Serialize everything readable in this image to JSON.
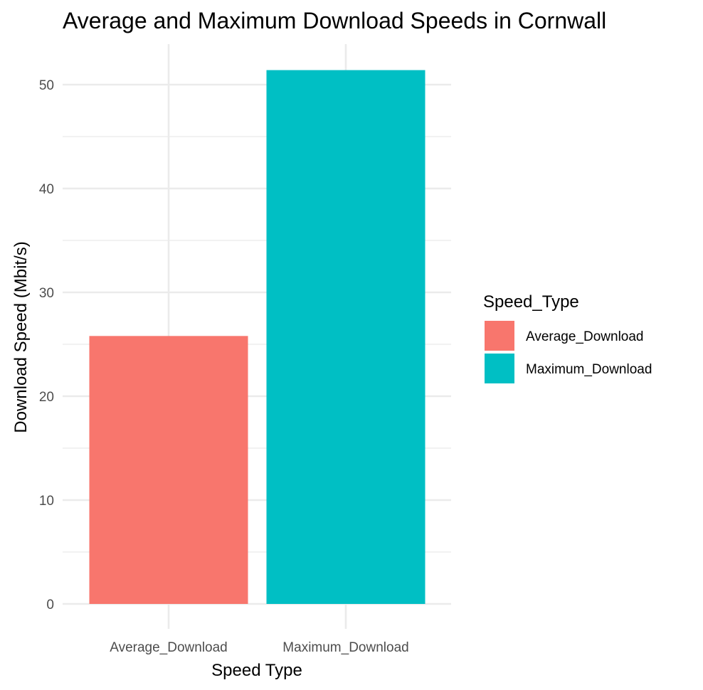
{
  "chart_data": {
    "type": "bar",
    "title": "Average and Maximum Download Speeds in Cornwall",
    "xlabel": "Speed Type",
    "ylabel": "Download Speed (Mbit/s)",
    "categories": [
      "Average_Download",
      "Maximum_Download"
    ],
    "values": [
      25.8,
      51.4
    ],
    "colors": [
      "#F8766D",
      "#00BFC4"
    ],
    "ylim": [
      0,
      52
    ],
    "yticks": [
      0,
      10,
      20,
      30,
      40,
      50
    ],
    "ytick_labels": [
      "0",
      "10",
      "20",
      "30",
      "40",
      "50"
    ],
    "grid": true,
    "legend": {
      "title": "Speed_Type",
      "position": "right",
      "entries": [
        {
          "label": "Average_Download",
          "color": "#F8766D"
        },
        {
          "label": "Maximum_Download",
          "color": "#00BFC4"
        }
      ]
    }
  }
}
